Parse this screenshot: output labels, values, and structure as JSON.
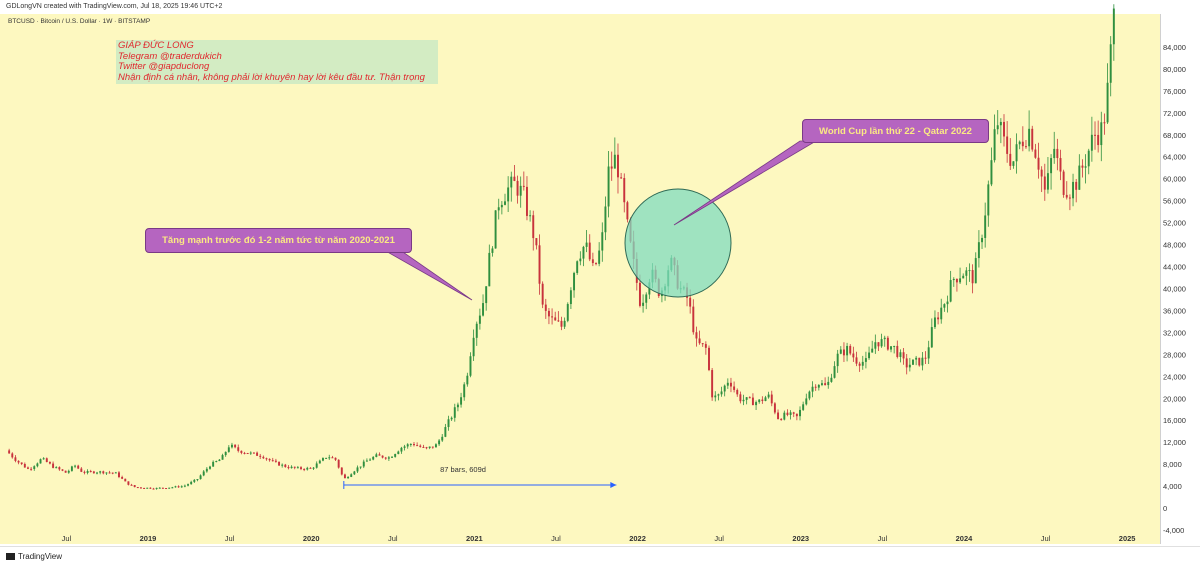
{
  "header": {
    "attribution": "GDLongVN created with TradingView.com, Jul 18, 2025 19:46 UTC+2",
    "symbol": "BTCUSD · Bitcoin / U.S. Dollar · 1W · BITSTAMP"
  },
  "footer": {
    "brand": "TradingView"
  },
  "annotations": {
    "author_lines": [
      "GIÁP ĐỨC LONG",
      "Telegram @traderdukich",
      "Twitter @giapduclong",
      "Nhận định cá nhân, không phải lời khuyên hay lời kêu đầu tư. Thận trọng"
    ],
    "callout_left": "Tăng mạnh trước đó 1-2 năm tức từ năm 2020-2021",
    "callout_right": "World Cup lần thứ 22 - Qatar 2022",
    "range_label": "87 bars, 609d"
  },
  "colors": {
    "background": "#fdf8c0",
    "up_candle": "#2f8f3f",
    "down_candle": "#c8323c",
    "callout_fill": "#b565c0",
    "callout_text": "#fbe983",
    "circle_fill": "#7fdcc0",
    "author_text": "#e0282e",
    "author_box": "#d3ecc3",
    "measure_line": "#2962ff"
  },
  "chart_data": {
    "type": "candlestick",
    "ylim": [
      -4000,
      90000
    ],
    "price_ticks": [
      84000,
      80000,
      76000,
      72000,
      68000,
      64000,
      60000,
      56000,
      52000,
      48000,
      44000,
      40000,
      36000,
      32000,
      28000,
      24000,
      20000,
      16000,
      12000,
      8000,
      4000,
      0,
      -4000
    ],
    "price_tick_labels": [
      "84,000",
      "80,000",
      "76,000",
      "72,000",
      "68,000",
      "64,000",
      "60,000",
      "56,000",
      "52,000",
      "48,000",
      "44,000",
      "40,000",
      "36,000",
      "32,000",
      "28,000",
      "24,000",
      "20,000",
      "16,000",
      "12,000",
      "8,000",
      "4,000",
      "0",
      "-4,000"
    ],
    "time_ticks": [
      {
        "label": "Jul",
        "t": 2018.5,
        "year": false
      },
      {
        "label": "2019",
        "t": 2019.0,
        "year": true
      },
      {
        "label": "Jul",
        "t": 2019.5,
        "year": false
      },
      {
        "label": "2020",
        "t": 2020.0,
        "year": true
      },
      {
        "label": "Jul",
        "t": 2020.5,
        "year": false
      },
      {
        "label": "2021",
        "t": 2021.0,
        "year": true
      },
      {
        "label": "Jul",
        "t": 2021.5,
        "year": false
      },
      {
        "label": "2022",
        "t": 2022.0,
        "year": true
      },
      {
        "label": "Jul",
        "t": 2022.5,
        "year": false
      },
      {
        "label": "2023",
        "t": 2023.0,
        "year": true
      },
      {
        "label": "Jul",
        "t": 2023.5,
        "year": false
      },
      {
        "label": "2024",
        "t": 2024.0,
        "year": true
      },
      {
        "label": "Jul",
        "t": 2024.5,
        "year": false
      },
      {
        "label": "2025",
        "t": 2025.0,
        "year": true
      }
    ],
    "t_range": [
      2018.13,
      2025.14
    ],
    "weekly_closes": [
      [
        2018.13,
        10500
      ],
      [
        2018.2,
        8500
      ],
      [
        2018.27,
        7000
      ],
      [
        2018.35,
        9000
      ],
      [
        2018.42,
        7500
      ],
      [
        2018.5,
        6400
      ],
      [
        2018.55,
        7800
      ],
      [
        2018.6,
        6500
      ],
      [
        2018.7,
        6600
      ],
      [
        2018.8,
        6400
      ],
      [
        2018.87,
        4500
      ],
      [
        2018.92,
        3800
      ],
      [
        2018.97,
        3700
      ],
      [
        2019.05,
        3600
      ],
      [
        2019.15,
        3800
      ],
      [
        2019.22,
        4000
      ],
      [
        2019.3,
        5200
      ],
      [
        2019.38,
        7800
      ],
      [
        2019.45,
        9000
      ],
      [
        2019.5,
        11500
      ],
      [
        2019.55,
        10500
      ],
      [
        2019.62,
        10000
      ],
      [
        2019.7,
        9500
      ],
      [
        2019.77,
        8300
      ],
      [
        2019.85,
        7500
      ],
      [
        2019.92,
        7200
      ],
      [
        2020.0,
        7200
      ],
      [
        2020.1,
        9500
      ],
      [
        2020.15,
        8800
      ],
      [
        2020.2,
        5200
      ],
      [
        2020.27,
        7000
      ],
      [
        2020.35,
        8800
      ],
      [
        2020.4,
        9500
      ],
      [
        2020.48,
        9200
      ],
      [
        2020.55,
        11000
      ],
      [
        2020.62,
        11800
      ],
      [
        2020.7,
        10700
      ],
      [
        2020.77,
        11500
      ],
      [
        2020.83,
        15000
      ],
      [
        2020.9,
        19000
      ],
      [
        2020.95,
        23500
      ],
      [
        2021.0,
        33000
      ],
      [
        2021.05,
        37000
      ],
      [
        2021.1,
        47000
      ],
      [
        2021.15,
        56000
      ],
      [
        2021.2,
        58000
      ],
      [
        2021.25,
        59000
      ],
      [
        2021.3,
        57000
      ],
      [
        2021.37,
        49000
      ],
      [
        2021.42,
        36000
      ],
      [
        2021.48,
        34000
      ],
      [
        2021.54,
        33000
      ],
      [
        2021.58,
        39000
      ],
      [
        2021.63,
        46000
      ],
      [
        2021.68,
        48000
      ],
      [
        2021.73,
        43000
      ],
      [
        2021.78,
        48000
      ],
      [
        2021.82,
        61000
      ],
      [
        2021.87,
        64000
      ],
      [
        2021.9,
        58000
      ],
      [
        2021.96,
        47000
      ],
      [
        2022.02,
        37000
      ],
      [
        2022.08,
        43000
      ],
      [
        2022.14,
        39000
      ],
      [
        2022.2,
        45000
      ],
      [
        2022.26,
        40000
      ],
      [
        2022.31,
        38000
      ],
      [
        2022.36,
        30000
      ],
      [
        2022.42,
        29000
      ],
      [
        2022.46,
        20000
      ],
      [
        2022.5,
        20500
      ],
      [
        2022.56,
        23500
      ],
      [
        2022.62,
        20000
      ],
      [
        2022.68,
        19500
      ],
      [
        2022.74,
        19300
      ],
      [
        2022.8,
        20500
      ],
      [
        2022.86,
        16500
      ],
      [
        2022.92,
        17000
      ],
      [
        2022.98,
        16500
      ],
      [
        2023.04,
        21000
      ],
      [
        2023.1,
        23000
      ],
      [
        2023.16,
        22000
      ],
      [
        2023.22,
        27500
      ],
      [
        2023.28,
        29000
      ],
      [
        2023.34,
        27000
      ],
      [
        2023.4,
        26500
      ],
      [
        2023.46,
        30500
      ],
      [
        2023.52,
        30000
      ],
      [
        2023.58,
        29000
      ],
      [
        2023.64,
        26000
      ],
      [
        2023.7,
        26500
      ],
      [
        2023.76,
        27000
      ],
      [
        2023.82,
        34000
      ],
      [
        2023.88,
        37500
      ],
      [
        2023.94,
        42000
      ],
      [
        2024.0,
        43000
      ],
      [
        2024.06,
        42000
      ],
      [
        2024.12,
        52000
      ],
      [
        2024.17,
        63000
      ],
      [
        2024.2,
        71000
      ],
      [
        2024.25,
        66000
      ],
      [
        2024.3,
        63000
      ],
      [
        2024.35,
        67000
      ],
      [
        2024.4,
        69000
      ],
      [
        2024.45,
        64000
      ],
      [
        2024.5,
        57000
      ],
      [
        2024.55,
        66000
      ],
      [
        2024.6,
        59000
      ],
      [
        2024.65,
        58000
      ],
      [
        2024.7,
        60000
      ],
      [
        2024.75,
        64000
      ],
      [
        2024.8,
        68000
      ],
      [
        2024.85,
        69000
      ],
      [
        2024.88,
        76000
      ],
      [
        2024.92,
        90000
      ]
    ],
    "measure": {
      "t_start": 2020.2,
      "t_end": 2021.87,
      "price": 4200
    }
  }
}
